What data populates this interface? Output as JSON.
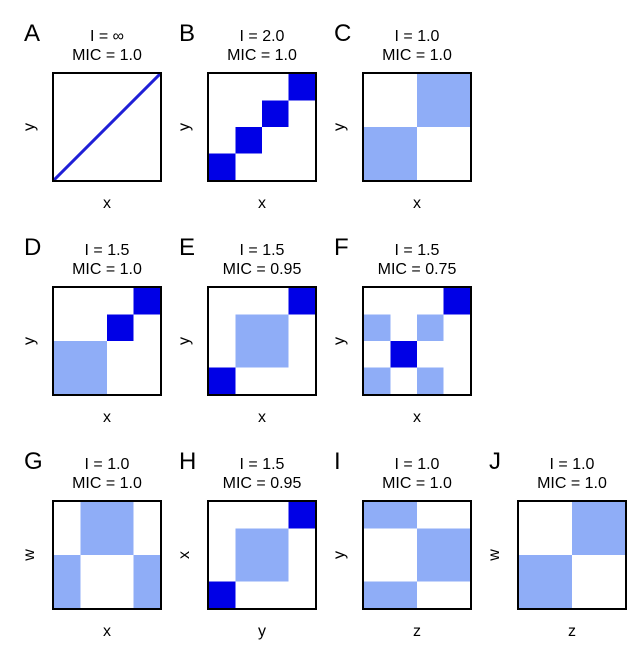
{
  "colors": {
    "dark": "#0000e6",
    "light": "#8fadf7",
    "line": "#1f1fd6"
  },
  "panels": [
    {
      "letter": "A",
      "i_label": "I = ∞",
      "mic_label": "MIC = 1.0",
      "xlabel": "x",
      "ylabel": "y",
      "line": true,
      "cells": []
    },
    {
      "letter": "B",
      "i_label": "I = 2.0",
      "mic_label": "MIC = 1.0",
      "xlabel": "x",
      "ylabel": "y",
      "line": false,
      "cells": [
        {
          "r": 0,
          "c": 3,
          "t": "dark"
        },
        {
          "r": 1,
          "c": 2,
          "t": "dark"
        },
        {
          "r": 2,
          "c": 1,
          "t": "dark"
        },
        {
          "r": 3,
          "c": 0,
          "t": "dark"
        }
      ],
      "grid": 4
    },
    {
      "letter": "C",
      "i_label": "I = 1.0",
      "mic_label": "MIC = 1.0",
      "xlabel": "x",
      "ylabel": "y",
      "line": false,
      "cells": [
        {
          "r": 0,
          "c": 1,
          "t": "light"
        },
        {
          "r": 1,
          "c": 0,
          "t": "light"
        }
      ],
      "grid": 2
    },
    {
      "letter": "D",
      "i_label": "I = 1.5",
      "mic_label": "MIC = 1.0",
      "xlabel": "x",
      "ylabel": "y",
      "line": false,
      "cells": [
        {
          "r": 0,
          "c": 3,
          "t": "dark",
          "w": 1,
          "h": 1
        },
        {
          "r": 1,
          "c": 2,
          "t": "dark",
          "w": 1,
          "h": 1
        },
        {
          "r": 2,
          "c": 0,
          "t": "light",
          "w": 2,
          "h": 2
        }
      ],
      "grid": 4
    },
    {
      "letter": "E",
      "i_label": "I = 1.5",
      "mic_label": "MIC = 0.95",
      "xlabel": "x",
      "ylabel": "y",
      "line": false,
      "cells": [
        {
          "r": 0,
          "c": 3,
          "t": "dark",
          "w": 1,
          "h": 1
        },
        {
          "r": 1,
          "c": 1,
          "t": "light",
          "w": 2,
          "h": 2
        },
        {
          "r": 3,
          "c": 0,
          "t": "dark",
          "w": 1,
          "h": 1
        }
      ],
      "grid": 4
    },
    {
      "letter": "F",
      "i_label": "I = 1.5",
      "mic_label": "MIC = 0.75",
      "xlabel": "x",
      "ylabel": "y",
      "line": false,
      "cells": [
        {
          "r": 0,
          "c": 3,
          "t": "dark"
        },
        {
          "r": 1,
          "c": 0,
          "t": "light"
        },
        {
          "r": 1,
          "c": 2,
          "t": "light"
        },
        {
          "r": 2,
          "c": 1,
          "t": "dark"
        },
        {
          "r": 3,
          "c": 0,
          "t": "light"
        },
        {
          "r": 3,
          "c": 2,
          "t": "light"
        }
      ],
      "grid": 4
    },
    {
      "letter": "G",
      "i_label": "I = 1.0",
      "mic_label": "MIC = 1.0",
      "xlabel": "x",
      "ylabel": "w",
      "line": false,
      "cells": [
        {
          "r": 0,
          "c": 1,
          "t": "light",
          "w": 2,
          "h": 2
        },
        {
          "r": 2,
          "c": 0,
          "t": "light",
          "w": 1,
          "h": 2
        },
        {
          "r": 2,
          "c": 3,
          "t": "light",
          "w": 1,
          "h": 2
        }
      ],
      "grid": 4
    },
    {
      "letter": "H",
      "i_label": "I = 1.5",
      "mic_label": "MIC = 0.95",
      "xlabel": "y",
      "ylabel": "x",
      "line": false,
      "cells": [
        {
          "r": 0,
          "c": 3,
          "t": "dark",
          "w": 1,
          "h": 1
        },
        {
          "r": 1,
          "c": 1,
          "t": "light",
          "w": 2,
          "h": 2
        },
        {
          "r": 3,
          "c": 0,
          "t": "dark",
          "w": 1,
          "h": 1
        }
      ],
      "grid": 4
    },
    {
      "letter": "I",
      "i_label": "I = 1.0",
      "mic_label": "MIC = 1.0",
      "xlabel": "z",
      "ylabel": "y",
      "line": false,
      "cells": [
        {
          "r": 0,
          "c": 0,
          "t": "light",
          "w": 2,
          "h": 1
        },
        {
          "r": 1,
          "c": 2,
          "t": "light",
          "w": 2,
          "h": 2
        },
        {
          "r": 3,
          "c": 0,
          "t": "light",
          "w": 2,
          "h": 1
        }
      ],
      "grid": 4
    },
    {
      "letter": "J",
      "i_label": "I = 1.0",
      "mic_label": "MIC = 1.0",
      "xlabel": "z",
      "ylabel": "w",
      "line": false,
      "cells": [
        {
          "r": 0,
          "c": 1,
          "t": "light"
        },
        {
          "r": 1,
          "c": 0,
          "t": "light"
        }
      ],
      "grid": 2
    }
  ]
}
